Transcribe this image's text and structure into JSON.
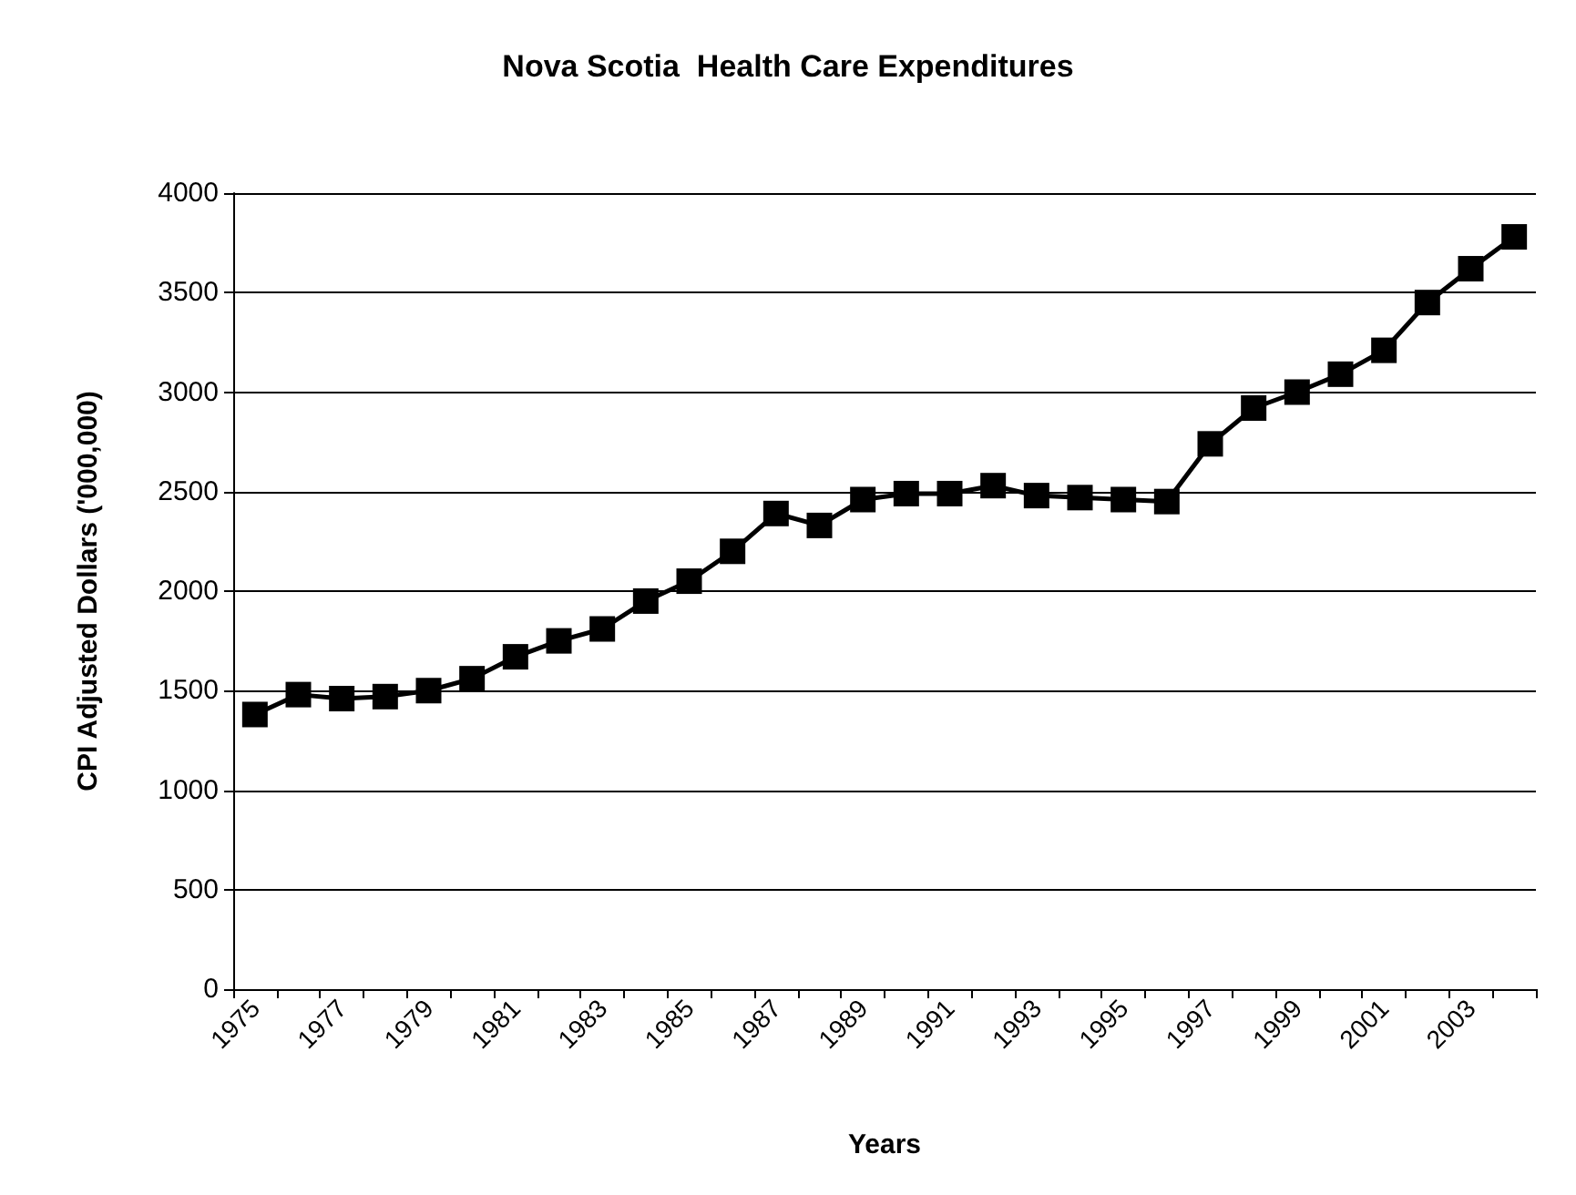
{
  "chart_data": {
    "type": "line",
    "title": "Nova Scotia  Health Care Expenditures",
    "xlabel": "Years",
    "ylabel": "CPI Adjusted Dollars ('000,000)",
    "categories": [
      "1975",
      null,
      "1977",
      null,
      "1979",
      null,
      "1981",
      null,
      "1983",
      null,
      "1985",
      null,
      "1987",
      null,
      "1989",
      null,
      "1991",
      null,
      "1993",
      null,
      "1995",
      null,
      "1997",
      null,
      "1999",
      null,
      "2001",
      null,
      "2003",
      null
    ],
    "series": [
      {
        "color": "#000000",
        "values": [
          1380,
          1480,
          1460,
          1470,
          1500,
          1560,
          1670,
          1750,
          1810,
          1950,
          2050,
          2200,
          2390,
          2330,
          2460,
          2490,
          2490,
          2530,
          2480,
          2470,
          2460,
          2450,
          2740,
          2920,
          3000,
          3090,
          3210,
          3450,
          3620,
          3780
        ]
      }
    ],
    "ylim": [
      0,
      4000
    ],
    "yticks": [
      0,
      500,
      1000,
      1500,
      2000,
      2500,
      3000,
      3500,
      4000
    ],
    "grid": "y",
    "marker": "square",
    "line_style": "solid"
  }
}
